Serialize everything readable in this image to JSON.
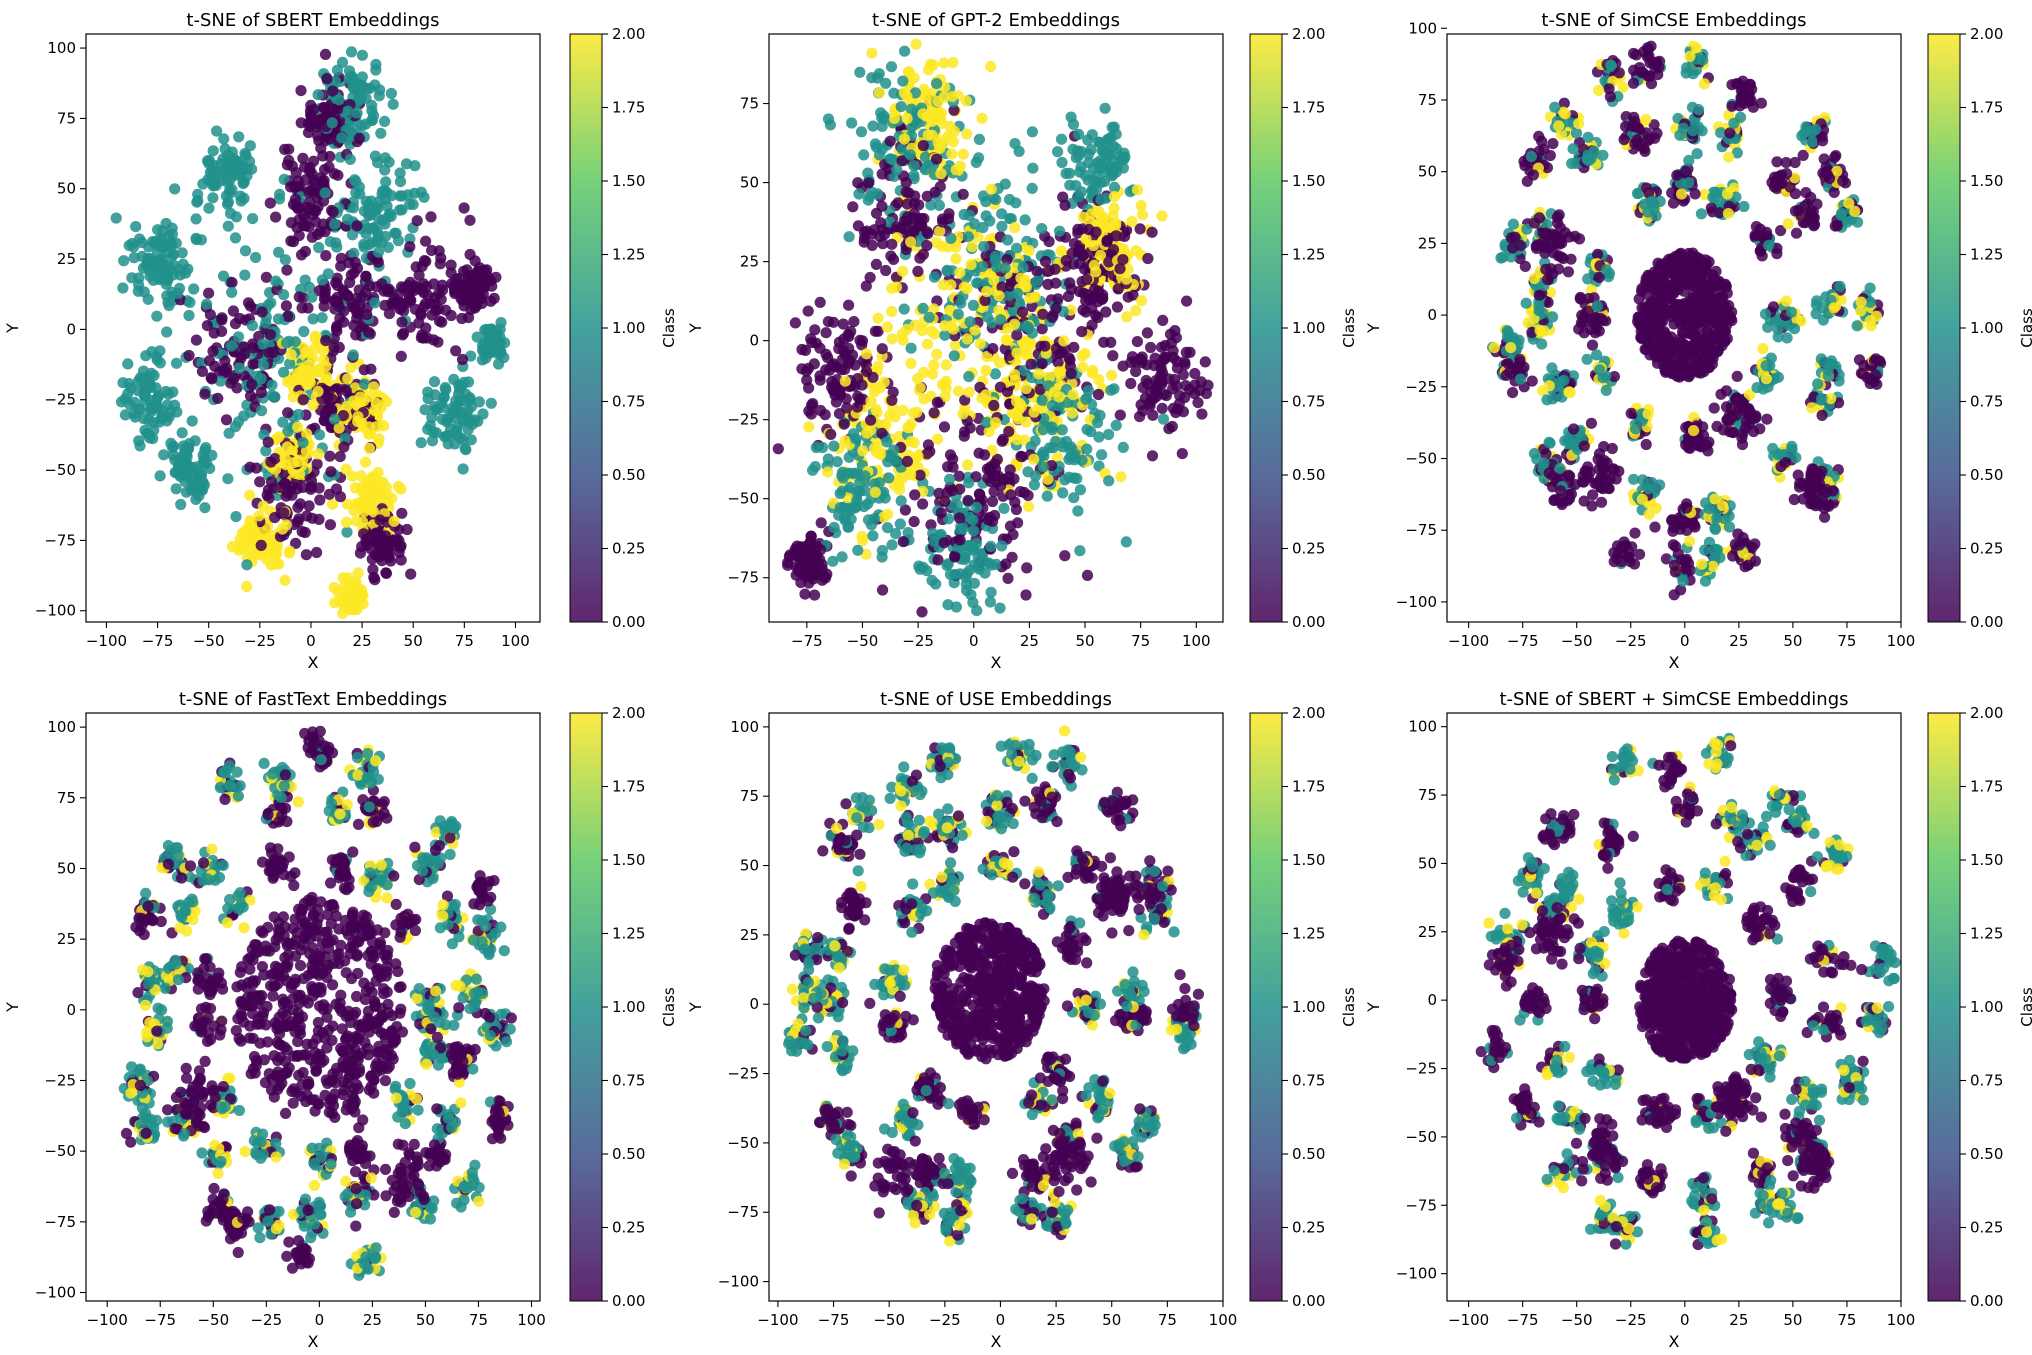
{
  "figure": {
    "layout": "2x3 grid of t-SNE scatter plots with colorbars",
    "colormap": "viridis",
    "point_alpha": 0.85
  },
  "colors": {
    "viridis": [
      "#440154",
      "#3b528b",
      "#21918c",
      "#5ec962",
      "#fde725"
    ],
    "background": "#ffffff",
    "axis": "#000000"
  },
  "chart_data": [
    {
      "type": "scatter",
      "title": "t-SNE of SBERT Embeddings",
      "xlabel": "X",
      "ylabel": "Y",
      "xlim": [
        -110,
        112
      ],
      "ylim": [
        -104,
        105
      ],
      "xticks": [
        -100,
        -75,
        -50,
        -25,
        0,
        25,
        50,
        75,
        100
      ],
      "yticks": [
        -100,
        -75,
        -50,
        -25,
        0,
        25,
        50,
        75,
        100
      ],
      "colorbar": {
        "label": "Class",
        "range": [
          0,
          2
        ],
        "ticks": [
          "0.00",
          "0.25",
          "0.50",
          "0.75",
          "1.00",
          "1.25",
          "1.50",
          "1.75",
          "2.00"
        ]
      },
      "classes": [
        0,
        1,
        2
      ],
      "cluster_pattern": "diffuse",
      "seed": 11,
      "series": [
        {
          "name": "Class 0",
          "value": 0,
          "clusters": [
            [
              0,
              45,
              14
            ],
            [
              -35,
              -8,
              18
            ],
            [
              15,
              -28,
              14
            ],
            [
              55,
              10,
              16
            ],
            [
              -10,
              -55,
              16
            ],
            [
              10,
              75,
              12
            ],
            [
              35,
              -75,
              10
            ],
            [
              80,
              15,
              8
            ],
            [
              20,
              10,
              16
            ]
          ]
        },
        {
          "name": "Class 1",
          "value": 1,
          "clusters": [
            [
              -75,
              25,
              14
            ],
            [
              -80,
              -25,
              12
            ],
            [
              -20,
              -5,
              40
            ],
            [
              30,
              40,
              20
            ],
            [
              70,
              -30,
              12
            ],
            [
              -60,
              -50,
              10
            ],
            [
              90,
              -5,
              6
            ],
            [
              -40,
              55,
              12
            ],
            [
              20,
              80,
              14
            ]
          ]
        },
        {
          "name": "Class 2",
          "value": 2,
          "clusters": [
            [
              0,
              -15,
              10
            ],
            [
              -25,
              -75,
              10
            ],
            [
              -10,
              -45,
              8
            ],
            [
              30,
              -60,
              10
            ],
            [
              20,
              -95,
              5
            ],
            [
              25,
              -30,
              10
            ]
          ]
        }
      ]
    },
    {
      "type": "scatter",
      "title": "t-SNE of GPT-2 Embeddings",
      "xlabel": "X",
      "ylabel": "Y",
      "xlim": [
        -92,
        112
      ],
      "ylim": [
        -89,
        97
      ],
      "xticks": [
        -75,
        -50,
        -25,
        0,
        25,
        50,
        75,
        100
      ],
      "yticks": [
        -75,
        -50,
        -25,
        0,
        25,
        50,
        75
      ],
      "colorbar": {
        "label": "Class",
        "range": [
          0,
          2
        ],
        "ticks": [
          "0.00",
          "0.25",
          "0.50",
          "0.75",
          "1.00",
          "1.25",
          "1.50",
          "1.75",
          "2.00"
        ]
      },
      "classes": [
        0,
        1,
        2
      ],
      "cluster_pattern": "blob",
      "seed": 23,
      "series": [
        {
          "name": "Class 0",
          "value": 0,
          "clusters": [
            [
              -60,
              -10,
              18
            ],
            [
              85,
              -15,
              14
            ],
            [
              0,
              -50,
              25
            ],
            [
              25,
              5,
              30
            ],
            [
              -30,
              40,
              20
            ],
            [
              55,
              25,
              15
            ],
            [
              -75,
              -70,
              8
            ]
          ]
        },
        {
          "name": "Class 1",
          "value": 1,
          "clusters": [
            [
              -30,
              60,
              22
            ],
            [
              10,
              20,
              30
            ],
            [
              -50,
              -45,
              18
            ],
            [
              40,
              -30,
              20
            ],
            [
              -5,
              -65,
              15
            ],
            [
              55,
              55,
              12
            ]
          ]
        },
        {
          "name": "Class 2",
          "value": 2,
          "clusters": [
            [
              -20,
              70,
              18
            ],
            [
              0,
              10,
              30
            ],
            [
              30,
              -20,
              25
            ],
            [
              -40,
              -30,
              20
            ],
            [
              60,
              30,
              14
            ]
          ]
        }
      ]
    },
    {
      "type": "scatter",
      "title": "t-SNE of SimCSE Embeddings",
      "xlabel": "X",
      "ylabel": "Y",
      "xlim": [
        -110,
        100
      ],
      "ylim": [
        -107,
        98
      ],
      "xticks": [
        -100,
        -75,
        -50,
        -25,
        0,
        25,
        50,
        75,
        100
      ],
      "yticks": [
        -100,
        -75,
        -50,
        -25,
        0,
        25,
        50,
        75,
        100
      ],
      "colorbar": {
        "label": "Class",
        "range": [
          0,
          2
        ],
        "ticks": [
          "0.00",
          "0.25",
          "0.50",
          "0.75",
          "1.00",
          "1.25",
          "1.50",
          "1.75",
          "2.00"
        ]
      },
      "classes": [
        0,
        1,
        2
      ],
      "cluster_pattern": "radial",
      "seed": 37,
      "radial": {
        "center": [
          0,
          0
        ],
        "core_radius": 22,
        "rings": [
          45,
          70,
          88
        ],
        "ring_counts": [
          12,
          18,
          22
        ]
      },
      "series": [
        {
          "name": "Class 0",
          "value": 0,
          "clusters": [
            [
              0,
              0,
              22
            ],
            [
              -40,
              -55,
              10
            ],
            [
              25,
              -35,
              10
            ],
            [
              -60,
              25,
              10
            ],
            [
              60,
              -60,
              8
            ]
          ]
        },
        {
          "name": "Class 1",
          "value": 1,
          "clusters": []
        },
        {
          "name": "Class 2",
          "value": 2,
          "clusters": []
        }
      ]
    },
    {
      "type": "scatter",
      "title": "t-SNE of FastText Embeddings",
      "xlabel": "X",
      "ylabel": "Y",
      "xlim": [
        -110,
        104
      ],
      "ylim": [
        -103,
        105
      ],
      "xticks": [
        -100,
        -75,
        -50,
        -25,
        0,
        25,
        50,
        75,
        100
      ],
      "yticks": [
        -100,
        -75,
        -50,
        -25,
        0,
        25,
        50,
        75,
        100
      ],
      "colorbar": {
        "label": "Class",
        "range": [
          0,
          2
        ],
        "ticks": [
          "0.00",
          "0.25",
          "0.50",
          "0.75",
          "1.00",
          "1.25",
          "1.50",
          "1.75",
          "2.00"
        ]
      },
      "classes": [
        0,
        1,
        2
      ],
      "cluster_pattern": "radial",
      "seed": 41,
      "radial": {
        "center": [
          0,
          0
        ],
        "core_radius": 40,
        "rings": [
          55,
          75,
          90
        ],
        "ring_counts": [
          14,
          18,
          20
        ]
      },
      "series": [
        {
          "name": "Class 0",
          "value": 0,
          "clusters": [
            [
              0,
              5,
              40
            ],
            [
              -60,
              -30,
              12
            ],
            [
              40,
              -60,
              12
            ]
          ]
        },
        {
          "name": "Class 1",
          "value": 1,
          "clusters": []
        },
        {
          "name": "Class 2",
          "value": 2,
          "clusters": []
        }
      ]
    },
    {
      "type": "scatter",
      "title": "t-SNE of USE Embeddings",
      "xlabel": "X",
      "ylabel": "Y",
      "xlim": [
        -104,
        100
      ],
      "ylim": [
        -107,
        105
      ],
      "xticks": [
        -100,
        -75,
        -50,
        -25,
        0,
        25,
        50,
        75,
        100
      ],
      "yticks": [
        -100,
        -75,
        -50,
        -25,
        0,
        25,
        50,
        75,
        100
      ],
      "colorbar": {
        "label": "Class",
        "range": [
          0,
          2
        ],
        "ticks": [
          "0.00",
          "0.25",
          "0.50",
          "0.75",
          "1.00",
          "1.25",
          "1.50",
          "1.75",
          "2.00"
        ]
      },
      "classes": [
        0,
        1,
        2
      ],
      "cluster_pattern": "radial",
      "seed": 53,
      "radial": {
        "center": [
          -5,
          5
        ],
        "core_radius": 25,
        "rings": [
          45,
          68,
          88
        ],
        "ring_counts": [
          12,
          18,
          22
        ]
      },
      "series": [
        {
          "name": "Class 0",
          "value": 0,
          "clusters": [
            [
              -5,
              5,
              25
            ],
            [
              30,
              -55,
              12
            ],
            [
              -45,
              -60,
              12
            ],
            [
              55,
              40,
              12
            ]
          ]
        },
        {
          "name": "Class 1",
          "value": 1,
          "clusters": []
        },
        {
          "name": "Class 2",
          "value": 2,
          "clusters": []
        }
      ]
    },
    {
      "type": "scatter",
      "title": "t-SNE of SBERT + SimCSE Embeddings",
      "xlabel": "X",
      "ylabel": "Y",
      "xlim": [
        -110,
        100
      ],
      "ylim": [
        -110,
        105
      ],
      "xticks": [
        -100,
        -75,
        -50,
        -25,
        0,
        25,
        50,
        75,
        100
      ],
      "yticks": [
        -100,
        -75,
        -50,
        -25,
        0,
        25,
        50,
        75,
        100
      ],
      "colorbar": {
        "label": "Class",
        "range": [
          0,
          2
        ],
        "ticks": [
          "0.00",
          "0.25",
          "0.50",
          "0.75",
          "1.00",
          "1.25",
          "1.50",
          "1.75",
          "2.00"
        ]
      },
      "classes": [
        0,
        1,
        2
      ],
      "cluster_pattern": "radial",
      "seed": 67,
      "radial": {
        "center": [
          0,
          0
        ],
        "core_radius": 22,
        "rings": [
          45,
          70,
          88
        ],
        "ring_counts": [
          12,
          18,
          22
        ]
      },
      "series": [
        {
          "name": "Class 0",
          "value": 0,
          "clusters": [
            [
              0,
              0,
              22
            ],
            [
              -40,
              -55,
              10
            ],
            [
              25,
              -35,
              10
            ],
            [
              -60,
              25,
              10
            ],
            [
              60,
              -60,
              8
            ]
          ]
        },
        {
          "name": "Class 1",
          "value": 1,
          "clusters": []
        },
        {
          "name": "Class 2",
          "value": 2,
          "clusters": []
        }
      ]
    }
  ]
}
